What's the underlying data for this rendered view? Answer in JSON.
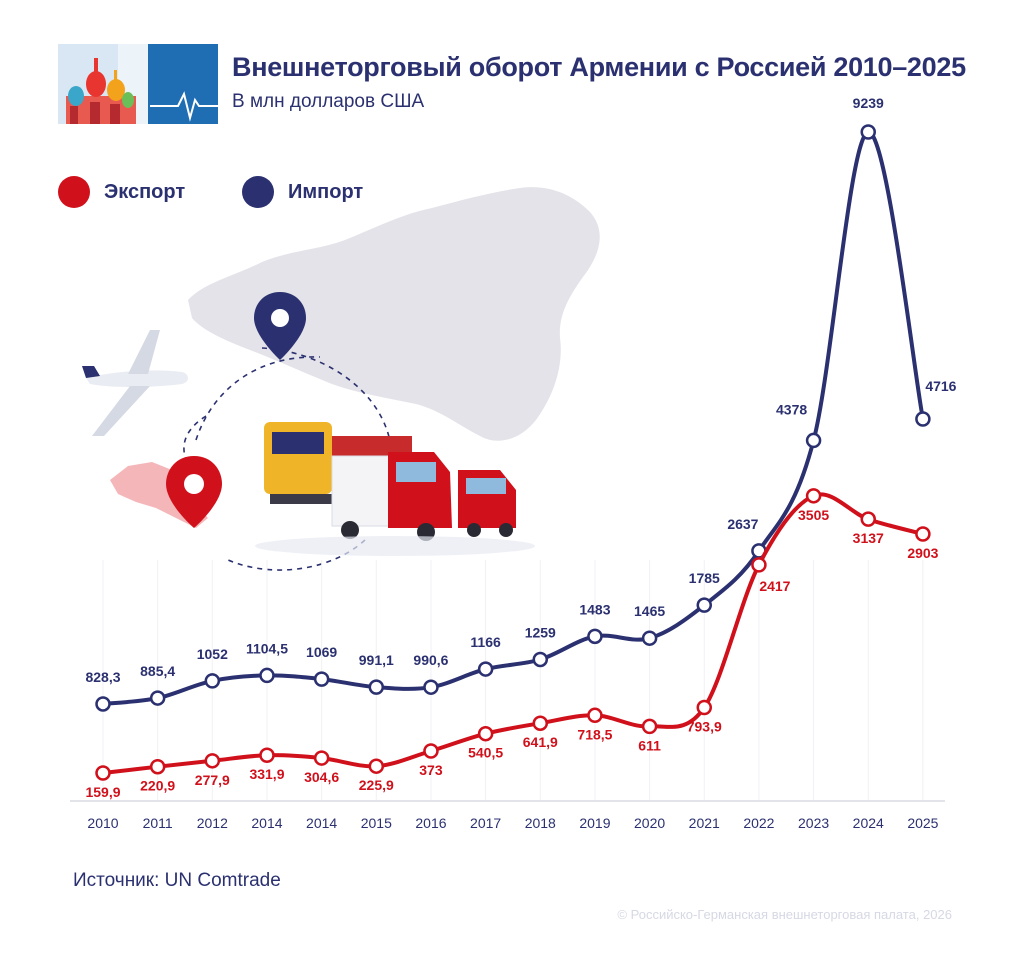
{
  "header": {
    "title": "Внешнеторговый оборот Армении с Россией 2010–2025",
    "subtitle": "В млн долларов США"
  },
  "legend": [
    {
      "label": "Экспорт",
      "color": "#d0111b"
    },
    {
      "label": "Импорт",
      "color": "#2b3170"
    }
  ],
  "footer": {
    "source": "Источник: UN Comtrade",
    "copyright": "© Российско-Германская внешнеторговая палата, 2026"
  },
  "chart_data": {
    "type": "line",
    "categories": [
      "2010",
      "2011",
      "2012",
      "2014",
      "2014",
      "2015",
      "2016",
      "2017",
      "2018",
      "2019",
      "2020",
      "2021",
      "2022",
      "2023",
      "2024",
      "2025"
    ],
    "series": [
      {
        "name": "Экспорт",
        "color": "#d0111b",
        "values": [
          159.9,
          220.9,
          277.9,
          331.9,
          304.6,
          225.9,
          373,
          540.5,
          641.9,
          718.5,
          611,
          793.9,
          2417,
          3505,
          3137,
          2903
        ],
        "labels": [
          "159,9",
          "220,9",
          "277,9",
          "331,9",
          "304,6",
          "225,9",
          "373",
          "540,5",
          "641,9",
          "718,5",
          "611",
          "793,9",
          "2417",
          "3505",
          "3137",
          "2903"
        ]
      },
      {
        "name": "Импорт",
        "color": "#2b3170",
        "values": [
          828.3,
          885.4,
          1052,
          1104.5,
          1069,
          991.1,
          990.6,
          1166,
          1259,
          1483,
          1465,
          1785,
          2637,
          4378,
          9239,
          4716
        ],
        "labels": [
          "828,3",
          "885,4",
          "1052",
          "1104,5",
          "1069",
          "991,1",
          "990,6",
          "1166",
          "1259",
          "1483",
          "1465",
          "1785",
          "2637",
          "4378",
          "9239",
          "4716"
        ]
      }
    ],
    "grid": "vertical",
    "legend_position": "top-left"
  }
}
